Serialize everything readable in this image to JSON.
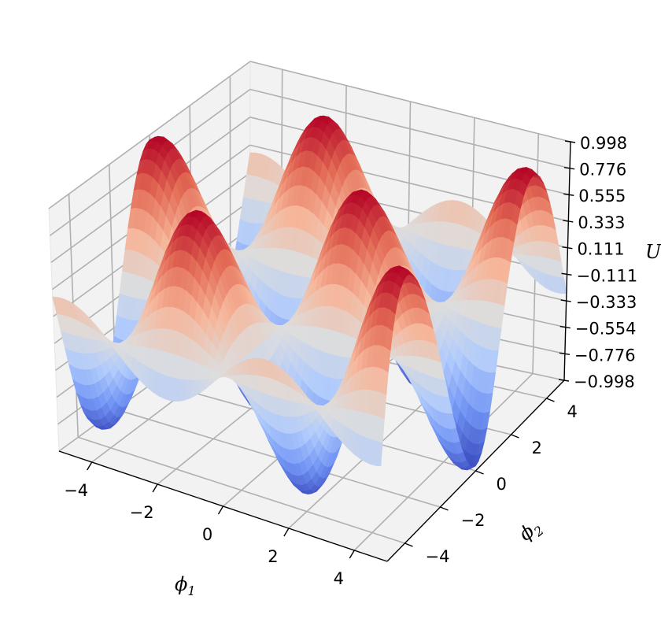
{
  "chart_data": {
    "type": "surface3d",
    "title": "",
    "function": "U = sin(phi1) * cos(phi2)",
    "colormap": "coolwarm",
    "colormap_stops": [
      "#3b4cc0",
      "#7396f5",
      "#b0cbfc",
      "#dddddd",
      "#f6b69a",
      "#e36b55",
      "#b40426"
    ],
    "x_axis": {
      "label": "ϕ1",
      "label_main": "ϕ",
      "label_sub": "1",
      "range": [
        -5,
        5
      ],
      "ticks": [
        "−4",
        "−2",
        "0",
        "2",
        "4"
      ],
      "tick_values": [
        -4,
        -2,
        0,
        2,
        4
      ]
    },
    "y_axis": {
      "label": "ϕ2",
      "label_main": "ϕ",
      "label_sub": "2",
      "range": [
        -5,
        5
      ],
      "ticks": [
        "−4",
        "−2",
        "0",
        "2",
        "4"
      ],
      "tick_values": [
        -4,
        -2,
        0,
        2,
        4
      ]
    },
    "z_axis": {
      "label": "U",
      "range": [
        -0.998,
        0.998
      ],
      "ticks": [
        "0.998",
        "0.776",
        "0.555",
        "0.333",
        "0.111",
        "−0.111",
        "−0.333",
        "−0.554",
        "−0.776",
        "−0.998"
      ],
      "tick_values": [
        0.998,
        0.776,
        0.555,
        0.333,
        0.111,
        -0.111,
        -0.333,
        -0.554,
        -0.776,
        -0.998
      ]
    },
    "grid": true,
    "pane_color": "#f2f2f2"
  }
}
